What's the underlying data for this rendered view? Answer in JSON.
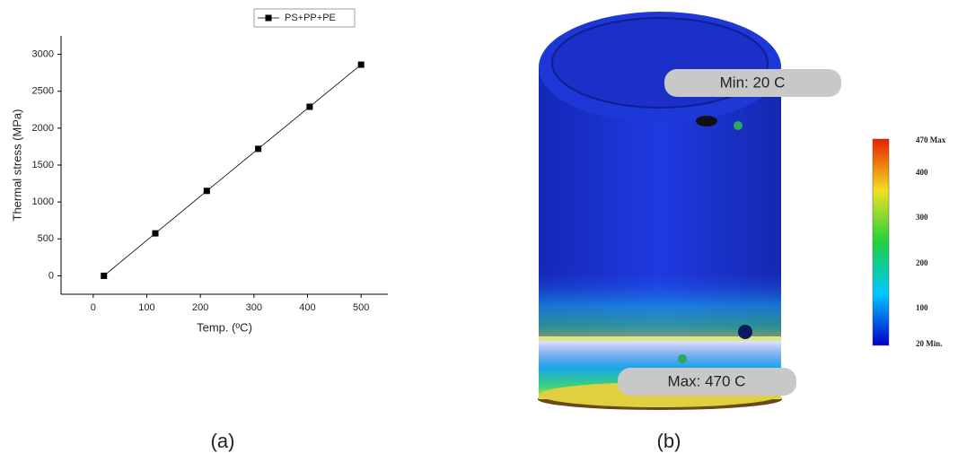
{
  "chart_data": {
    "type": "line",
    "x_label": "Temp. (ºC)",
    "y_label": "Thermal stress (MPa)",
    "x": [
      20,
      116,
      212,
      308,
      404,
      500
    ],
    "series": [
      {
        "name": "PS+PP+PE",
        "color": "#000000",
        "values": [
          0,
          575,
          1150,
          1720,
          2290,
          2860
        ]
      }
    ],
    "xlim": [
      -60,
      550
    ],
    "xticks": [
      0,
      100,
      200,
      300,
      400,
      500
    ],
    "ylim": [
      -250,
      3250
    ],
    "yticks": [
      0,
      500,
      1000,
      1500,
      2000,
      2500,
      3000
    ],
    "grid": false,
    "legend": "top-right"
  },
  "figure_b": {
    "min_label": "Min: 20 C",
    "max_label": "Max: 470 C",
    "colorbar_labels": [
      "470 Max",
      "400",
      "300",
      "200",
      "100",
      "20 Min."
    ]
  },
  "captions": [
    "(a)",
    "(b)"
  ]
}
